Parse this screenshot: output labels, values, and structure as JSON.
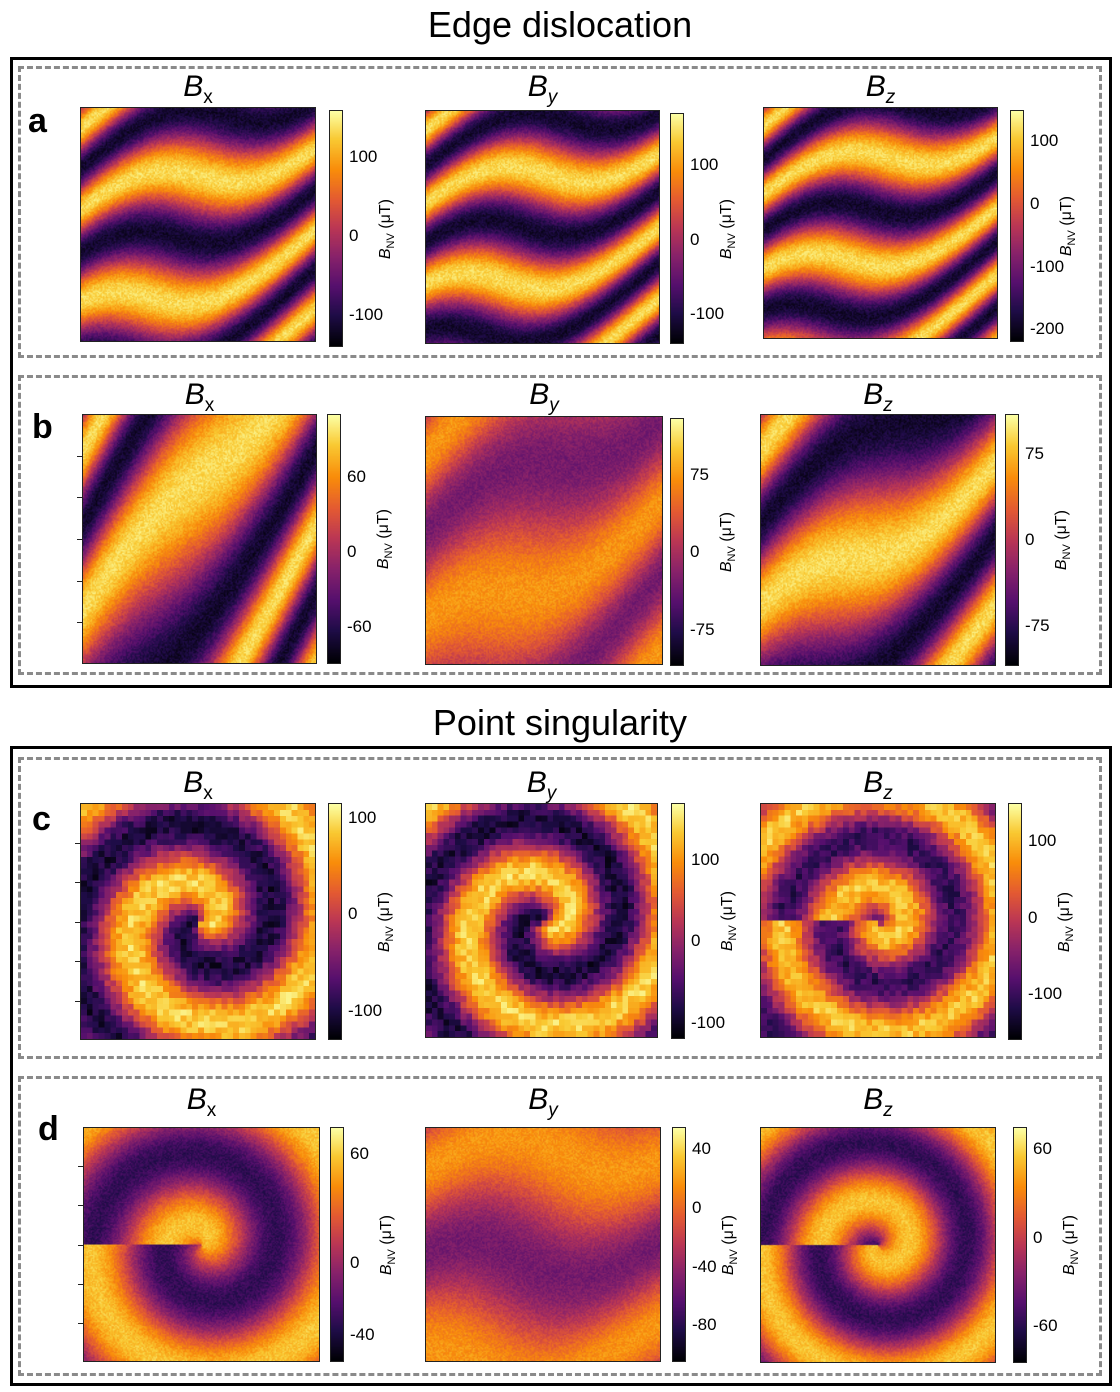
{
  "titles": {
    "edge": "Edge dislocation",
    "point": "Point singularity"
  },
  "unit_label": {
    "main": "B",
    "sub": "NV",
    "rest": " (μT)"
  },
  "colormap": "inferno",
  "chart_data": [
    {
      "panel": "a",
      "type": "heatmap",
      "maps": [
        {
          "title_main": "B",
          "title_sub": "x",
          "ticks": [
            "100",
            "0",
            "-100"
          ],
          "range": [
            -140,
            160
          ],
          "pattern": "stripes",
          "angle": 25,
          "freq": 2.6
        },
        {
          "title_main": "B",
          "title_sub": "y",
          "ticks": [
            "100",
            "0",
            "-100"
          ],
          "range": [
            -140,
            170
          ],
          "pattern": "stripes",
          "angle": 22,
          "freq": 2.8
        },
        {
          "title_main": "B",
          "title_sub": "z",
          "ticks": [
            "100",
            "0",
            "-100",
            "-200"
          ],
          "range": [
            -220,
            150
          ],
          "pattern": "stripes",
          "angle": 24,
          "freq": 3.0
        }
      ]
    },
    {
      "panel": "b",
      "type": "heatmap",
      "maps": [
        {
          "title_main": "B",
          "title_sub": "x",
          "ticks": [
            "60",
            "0",
            "-60"
          ],
          "range": [
            -90,
            110
          ],
          "pattern": "stripes",
          "angle": 55,
          "freq": 2.2
        },
        {
          "title_main": "B",
          "title_sub": "y",
          "ticks": [
            "75",
            "0",
            "-75"
          ],
          "range": [
            -110,
            130
          ],
          "pattern": "soft",
          "angle": 35,
          "freq": 1.6
        },
        {
          "title_main": "B",
          "title_sub": "z",
          "ticks": [
            "75",
            "0",
            "-75"
          ],
          "range": [
            -110,
            110
          ],
          "pattern": "stripes",
          "angle": 40,
          "freq": 1.8
        }
      ]
    },
    {
      "panel": "c",
      "type": "heatmap",
      "maps": [
        {
          "title_main": "B",
          "title_sub": "x",
          "ticks": [
            "100",
            "0",
            "-100"
          ],
          "range": [
            -130,
            115
          ],
          "pattern": "vortex-pixel",
          "angle": 60,
          "freq": 2.0
        },
        {
          "title_main": "B",
          "title_sub": "y",
          "ticks": [
            "100",
            "0",
            "-100"
          ],
          "range": [
            -120,
            170
          ],
          "pattern": "vortex-pixel",
          "angle": 15,
          "freq": 2.2
        },
        {
          "title_main": "B",
          "title_sub": "z",
          "ticks": [
            "100",
            "0",
            "-100"
          ],
          "range": [
            -160,
            150
          ],
          "pattern": "ring-pixel",
          "angle": 0,
          "freq": 2.4
        }
      ]
    },
    {
      "panel": "d",
      "type": "heatmap",
      "maps": [
        {
          "title_main": "B",
          "title_sub": "x",
          "ticks": [
            "60",
            "0",
            "-40"
          ],
          "range": [
            -55,
            75
          ],
          "pattern": "ring",
          "angle": 90,
          "freq": 1.6
        },
        {
          "title_main": "B",
          "title_sub": "y",
          "ticks": [
            "40",
            "0",
            "-40",
            "-80"
          ],
          "range": [
            -105,
            55
          ],
          "pattern": "soft",
          "angle": 10,
          "freq": 1.2
        },
        {
          "title_main": "B",
          "title_sub": "z",
          "ticks": [
            "60",
            "0",
            "-60"
          ],
          "range": [
            -85,
            75
          ],
          "pattern": "ring",
          "angle": 0,
          "freq": 2.0
        }
      ]
    }
  ]
}
